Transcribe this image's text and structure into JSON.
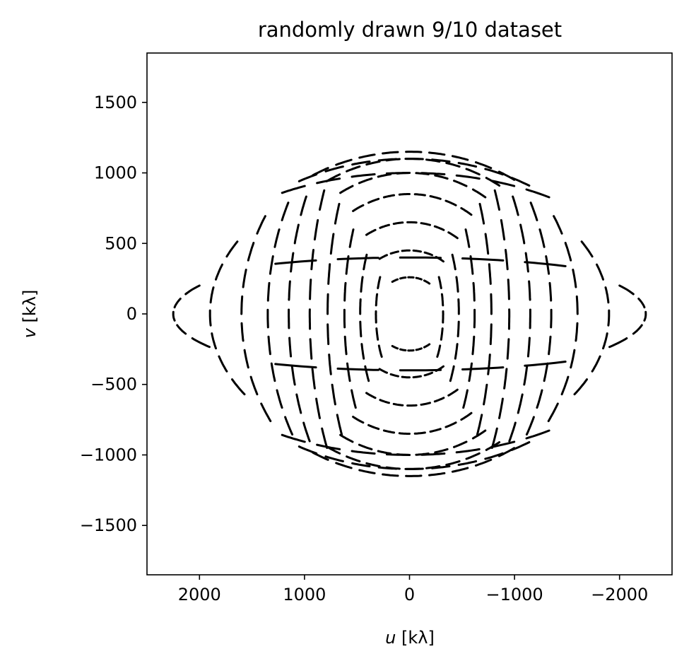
{
  "chart_data": {
    "type": "scatter",
    "title": "randomly drawn 9/10 dataset",
    "xlabel_var": "u",
    "xlabel_unit": " [kλ]",
    "ylabel_var": "v",
    "ylabel_unit": " [kλ]",
    "xlim": [
      2500,
      -2500
    ],
    "ylim": [
      -1850,
      1850
    ],
    "x_axis_inverted": true,
    "grid": false,
    "legend": "none",
    "mark_color": "#000000",
    "x_ticks": [
      {
        "value": 2000,
        "label": "2000"
      },
      {
        "value": 1000,
        "label": "1000"
      },
      {
        "value": 0,
        "label": "0"
      },
      {
        "value": -1000,
        "label": "−1000"
      },
      {
        "value": -2000,
        "label": "−2000"
      }
    ],
    "y_ticks": [
      {
        "value": 1500,
        "label": "1500"
      },
      {
        "value": 1000,
        "label": "1000"
      },
      {
        "value": 500,
        "label": "500"
      },
      {
        "value": 0,
        "label": "0"
      },
      {
        "value": -500,
        "label": "−500"
      },
      {
        "value": -1000,
        "label": "−1000"
      },
      {
        "value": -1500,
        "label": "−1500"
      }
    ],
    "series": [
      {
        "description_of_tracks": "uv-coverage arcs; each arc given by center offset and semi-axes in data units",
        "arcs": [
          {
            "cx": 0,
            "cy": 0,
            "a": 2250,
            "b": 260,
            "vertical": true,
            "tmin": -0.9,
            "tmax": 0.9,
            "segments": 5
          },
          {
            "cx": 0,
            "cy": 0,
            "a": 1900,
            "b": 600,
            "vertical": true,
            "tmin": -0.95,
            "tmax": 0.95,
            "segments": 7
          },
          {
            "cx": 0,
            "cy": 0,
            "a": 1600,
            "b": 800,
            "vertical": true,
            "tmin": -0.95,
            "tmax": 0.95,
            "segments": 8
          },
          {
            "cx": 0,
            "cy": 0,
            "a": 1350,
            "b": 900,
            "vertical": true,
            "tmin": -0.95,
            "tmax": 0.95,
            "segments": 9
          },
          {
            "cx": 0,
            "cy": 0,
            "a": 1150,
            "b": 950,
            "vertical": true,
            "tmin": -0.95,
            "tmax": 0.95,
            "segments": 9
          },
          {
            "cx": 0,
            "cy": 0,
            "a": 950,
            "b": 1000,
            "vertical": true,
            "tmin": -0.95,
            "tmax": 0.95,
            "segments": 9
          },
          {
            "cx": 0,
            "cy": 0,
            "a": 780,
            "b": 900,
            "vertical": true,
            "tmin": -0.95,
            "tmax": 0.95,
            "segments": 8
          },
          {
            "cx": 0,
            "cy": 0,
            "a": 620,
            "b": 700,
            "vertical": true,
            "tmin": -0.95,
            "tmax": 0.95,
            "segments": 7
          },
          {
            "cx": 0,
            "cy": 0,
            "a": 470,
            "b": 500,
            "vertical": true,
            "tmin": -0.95,
            "tmax": 0.95,
            "segments": 6
          },
          {
            "cx": 0,
            "cy": 0,
            "a": 320,
            "b": 320,
            "vertical": true,
            "tmin": -0.95,
            "tmax": 0.95,
            "segments": 5
          },
          {
            "cx": 0,
            "cy": 0,
            "a": 1650,
            "b": 400,
            "vertical": false,
            "tmin": -0.9,
            "tmax": 0.9,
            "segments": 5
          },
          {
            "cx": 0,
            "cy": 0,
            "a": 1400,
            "b": 1000,
            "vertical": false,
            "tmin": -0.95,
            "tmax": 0.95,
            "segments": 8
          },
          {
            "cx": 0,
            "cy": 0,
            "a": 1200,
            "b": 1100,
            "vertical": false,
            "tmin": -0.95,
            "tmax": 0.95,
            "segments": 9
          },
          {
            "cx": 0,
            "cy": 0,
            "a": 1050,
            "b": 1150,
            "vertical": false,
            "tmin": -0.95,
            "tmax": 0.95,
            "segments": 9
          },
          {
            "cx": 0,
            "cy": 0,
            "a": 900,
            "b": 1100,
            "vertical": false,
            "tmin": -0.95,
            "tmax": 0.95,
            "segments": 9
          },
          {
            "cx": 0,
            "cy": 0,
            "a": 760,
            "b": 1000,
            "vertical": false,
            "tmin": -0.95,
            "tmax": 0.95,
            "segments": 8
          },
          {
            "cx": 0,
            "cy": 0,
            "a": 620,
            "b": 850,
            "vertical": false,
            "tmin": -0.95,
            "tmax": 0.95,
            "segments": 8
          },
          {
            "cx": 0,
            "cy": 0,
            "a": 480,
            "b": 650,
            "vertical": false,
            "tmin": -0.95,
            "tmax": 0.95,
            "segments": 7
          },
          {
            "cx": 0,
            "cy": 0,
            "a": 340,
            "b": 450,
            "vertical": false,
            "tmin": -0.95,
            "tmax": 0.95,
            "segments": 6
          },
          {
            "cx": 0,
            "cy": 0,
            "a": 200,
            "b": 260,
            "vertical": false,
            "tmin": -0.95,
            "tmax": 0.95,
            "segments": 5
          }
        ]
      }
    ]
  }
}
